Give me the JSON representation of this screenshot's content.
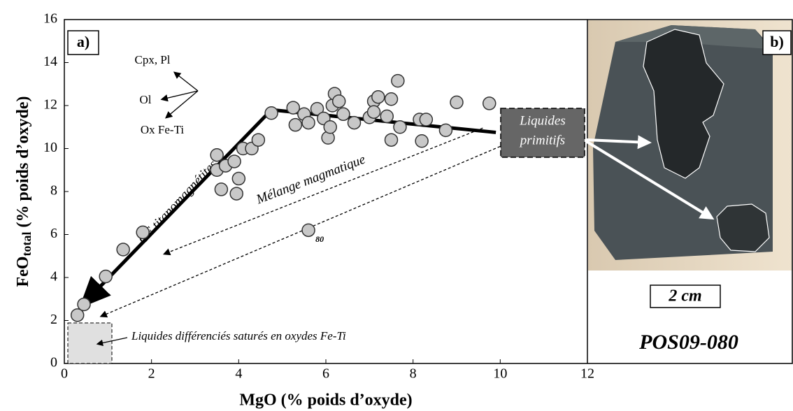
{
  "chart_data": {
    "type": "scatter",
    "panel_label": "a)",
    "xlabel": "MgO (% poids d’oxyde)",
    "ylabel": {
      "main": "FeO",
      "sub": "total",
      "rest": " (% poids d’oxyde)"
    },
    "x": [
      0.3,
      0.45,
      0.95,
      1.35,
      1.8,
      3.5,
      3.5,
      3.6,
      3.7,
      3.9,
      4.0,
      3.95,
      4.1,
      4.3,
      4.45,
      4.75,
      5.25,
      5.3,
      5.5,
      5.6,
      5.8,
      5.95,
      6.05,
      6.1,
      6.15,
      6.2,
      6.3,
      6.4,
      6.65,
      7.0,
      7.1,
      7.1,
      7.2,
      7.4,
      7.5,
      7.5,
      7.7,
      7.65,
      8.15,
      8.3,
      8.2,
      8.75,
      9.0,
      9.75,
      5.6
    ],
    "values": [
      2.25,
      2.75,
      4.05,
      5.3,
      6.1,
      9.7,
      9.0,
      8.1,
      9.2,
      9.4,
      8.6,
      7.9,
      10.0,
      10.0,
      10.4,
      11.65,
      11.9,
      11.1,
      11.6,
      11.2,
      11.85,
      11.4,
      10.5,
      11.0,
      12.0,
      12.55,
      12.2,
      11.6,
      11.2,
      11.45,
      12.2,
      11.7,
      12.4,
      11.5,
      12.3,
      10.4,
      11.0,
      13.15,
      11.35,
      11.35,
      10.35,
      10.85,
      12.15,
      12.1,
      6.2
    ],
    "color": "#c8c8c8",
    "xlim": [
      0,
      12
    ],
    "xticks": [
      0,
      2,
      4,
      6,
      8,
      10,
      12
    ],
    "ylim": [
      0,
      16
    ],
    "yticks": [
      0,
      2,
      4,
      6,
      8,
      10,
      12,
      14,
      16
    ],
    "annotations": {
      "cpx": "Cpx, Pl",
      "ol": "Ol",
      "ox": "Ox Fe-Ti",
      "cf": "CF titanomagnétites",
      "melange": "Mélange magmatique",
      "primitifs_1": "Liquides",
      "primitifs_2": "primitifs",
      "differencies": "Liquides différenciés saturés en oxydes Fe-Ti",
      "point_label": "80"
    },
    "panel_b": {
      "label": "b)",
      "scale": "2 cm",
      "sample": "POS09-080"
    }
  }
}
